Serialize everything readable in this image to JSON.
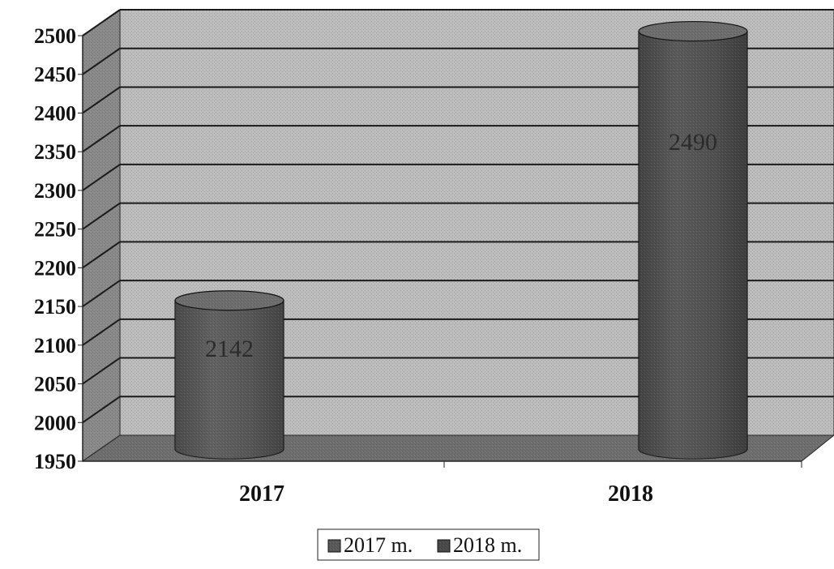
{
  "chart_data": {
    "type": "bar",
    "style": "3d-cylinder",
    "categories": [
      "2017",
      "2018"
    ],
    "series": [
      {
        "name": "2017 m.",
        "values": [
          2142,
          null
        ],
        "data_labels": [
          "2142",
          ""
        ]
      },
      {
        "name": "2018 m.",
        "values": [
          null,
          2490
        ],
        "data_labels": [
          "",
          "2490"
        ]
      }
    ],
    "ylim": [
      1950,
      2500
    ],
    "yticks": [
      "1950",
      "2000",
      "2050",
      "2100",
      "2150",
      "2200",
      "2250",
      "2300",
      "2350",
      "2400",
      "2450",
      "2500"
    ],
    "grid": true,
    "legend_position": "bottom",
    "colors": {
      "wall": "#bdbdbd",
      "side_wall": "#8a8a8a",
      "floor": "#6f6f6f",
      "bar_2017": "#5a5a5a",
      "bar_2018": "#4a4a4a",
      "grid_line": "#1a1a1a"
    }
  }
}
